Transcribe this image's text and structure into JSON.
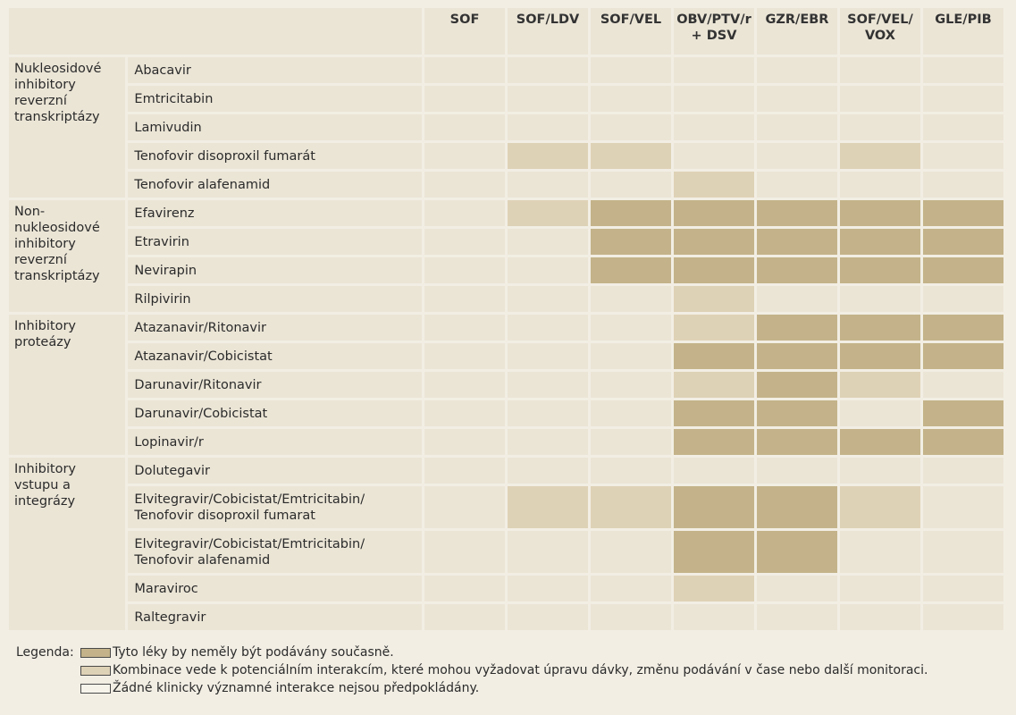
{
  "columns": [
    "SOF",
    "SOF/LDV",
    "SOF/VEL",
    "OBV/PTV/r + DSV",
    "GZR/EBR",
    "SOF/VEL/ VOX",
    "GLE/PIB"
  ],
  "colors": {
    "level-2": "#c4b38a",
    "level-1": "#ded2b6",
    "level-0": "#ebe5d6"
  },
  "groups": [
    {
      "label": "Nukleosidové inhibitory reverzní transkriptázy",
      "drugs": [
        {
          "name": "Abacavir",
          "levels": [
            0,
            0,
            0,
            0,
            0,
            0,
            0
          ]
        },
        {
          "name": "Emtricitabin",
          "levels": [
            0,
            0,
            0,
            0,
            0,
            0,
            0
          ]
        },
        {
          "name": "Lamivudin",
          "levels": [
            0,
            0,
            0,
            0,
            0,
            0,
            0
          ]
        },
        {
          "name": "Tenofovir disoproxil fumarát",
          "levels": [
            0,
            1,
            1,
            0,
            0,
            1,
            0
          ]
        },
        {
          "name": "Tenofovir alafenamid",
          "levels": [
            0,
            0,
            0,
            1,
            0,
            0,
            0
          ]
        }
      ]
    },
    {
      "label": "Non-nukleosidové inhibitory reverzní transkriptázy",
      "drugs": [
        {
          "name": "Efavirenz",
          "levels": [
            0,
            1,
            2,
            2,
            2,
            2,
            2
          ]
        },
        {
          "name": "Etravirin",
          "levels": [
            0,
            0,
            2,
            2,
            2,
            2,
            2
          ]
        },
        {
          "name": "Nevirapin",
          "levels": [
            0,
            0,
            2,
            2,
            2,
            2,
            2
          ]
        },
        {
          "name": "Rilpivirin",
          "levels": [
            0,
            0,
            0,
            1,
            0,
            0,
            0
          ]
        }
      ]
    },
    {
      "label": "Inhibitory proteázy",
      "drugs": [
        {
          "name": "Atazanavir/Ritonavir",
          "levels": [
            0,
            0,
            0,
            1,
            2,
            2,
            2
          ]
        },
        {
          "name": "Atazanavir/Cobicistat",
          "levels": [
            0,
            0,
            0,
            2,
            2,
            2,
            2
          ]
        },
        {
          "name": "Darunavir/Ritonavir",
          "levels": [
            0,
            0,
            0,
            1,
            2,
            1,
            0
          ]
        },
        {
          "name": "Darunavir/Cobicistat",
          "levels": [
            0,
            0,
            0,
            2,
            2,
            0,
            2
          ]
        },
        {
          "name": "Lopinavir/r",
          "levels": [
            0,
            0,
            0,
            2,
            2,
            2,
            2
          ]
        }
      ]
    },
    {
      "label": "Inhibitory vstupu a integrázy",
      "drugs": [
        {
          "name": "Dolutegavir",
          "levels": [
            0,
            0,
            0,
            0,
            0,
            0,
            0
          ]
        },
        {
          "name": "Elvitegravir/Cobicistat/Emtricitabin/ Tenofovir disoproxil fumarat",
          "levels": [
            0,
            1,
            1,
            2,
            2,
            1,
            0
          ],
          "tall": true
        },
        {
          "name": "Elvitegravir/Cobicistat/Emtricitabin/ Tenofovir alafenamid",
          "levels": [
            0,
            0,
            0,
            2,
            2,
            0,
            0
          ],
          "tall": true
        },
        {
          "name": "Maraviroc",
          "levels": [
            0,
            0,
            0,
            1,
            0,
            0,
            0
          ]
        },
        {
          "name": "Raltegravir",
          "levels": [
            0,
            0,
            0,
            0,
            0,
            0,
            0
          ]
        }
      ]
    }
  ],
  "legend": {
    "prefix": "Legenda:",
    "items": [
      {
        "level": 2,
        "text": "Tyto léky by neměly být podávány současně."
      },
      {
        "level": 1,
        "text": "Kombinace vede k potenciálním interakcím, které mohou vyžadovat úpravu dávky, změnu podávání v čase nebo další monitoraci."
      },
      {
        "level": 0,
        "text": "Žádné klinicky významné interakce nejsou předpokládány."
      }
    ]
  }
}
